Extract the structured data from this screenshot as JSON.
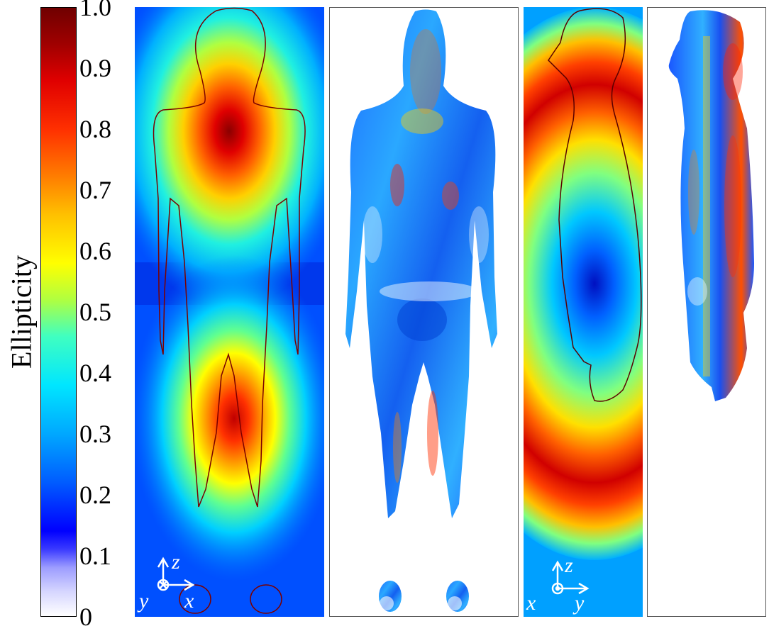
{
  "chart_data": {
    "type": "heatmap",
    "colorbar": {
      "title": "Ellipticity",
      "range": [
        0,
        1
      ],
      "ticks": [
        "1.0",
        "0.9",
        "0.8",
        "0.7",
        "0.6",
        "0.5",
        "0.4",
        "0.3",
        "0.2",
        "0.1",
        "0"
      ],
      "colormap": [
        "#ffffff",
        "#c8c8ff",
        "#0000ff",
        "#00bfff",
        "#00ffff",
        "#ffff00",
        "#ff8000",
        "#ff0000",
        "#800000"
      ]
    },
    "panels": [
      {
        "view": "coronal",
        "content": "field ellipticity map with body outline",
        "axes": {
          "up": "z",
          "right": "x",
          "normal": "y"
        }
      },
      {
        "view": "coronal",
        "content": "ellipticity inside body tissues",
        "axes": {}
      },
      {
        "view": "sagittal",
        "content": "field ellipticity map with body outline",
        "axes": {
          "up": "z",
          "right": "y",
          "normal": "x"
        }
      },
      {
        "view": "sagittal",
        "content": "ellipticity inside body tissues",
        "axes": {}
      }
    ]
  }
}
